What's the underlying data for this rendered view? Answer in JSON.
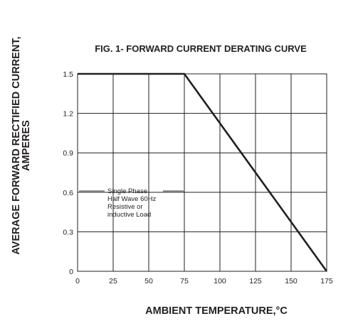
{
  "chart_data": {
    "type": "line",
    "title": "FIG. 1- FORWARD CURRENT DERATING CURVE",
    "xlabel": "AMBIENT TEMPERATURE,°C",
    "ylabel_lines": [
      "AVERAGE FORWARD RECTIFIED CURRENT,",
      "AMPERES"
    ],
    "xlim": [
      0,
      175
    ],
    "ylim": [
      0,
      1.5
    ],
    "x_ticks": [
      0,
      25,
      50,
      75,
      100,
      125,
      150,
      175
    ],
    "x_tick_labels": [
      "0",
      "25",
      "50",
      "75",
      "100",
      "125",
      "150",
      "175"
    ],
    "y_ticks": [
      0,
      0.3,
      0.6,
      0.9,
      1.2,
      1.5
    ],
    "y_tick_labels": [
      "0",
      "0.3",
      "0.6",
      "0.9",
      "1.2",
      "1.5"
    ],
    "grid": true,
    "series": [
      {
        "x": [
          0,
          75,
          175
        ],
        "y": [
          1.5,
          1.5,
          0
        ]
      }
    ],
    "annotation_lines": [
      "Single Phase",
      "Half Wave 60Hz",
      "Resistive or",
      "inductive Load"
    ]
  }
}
